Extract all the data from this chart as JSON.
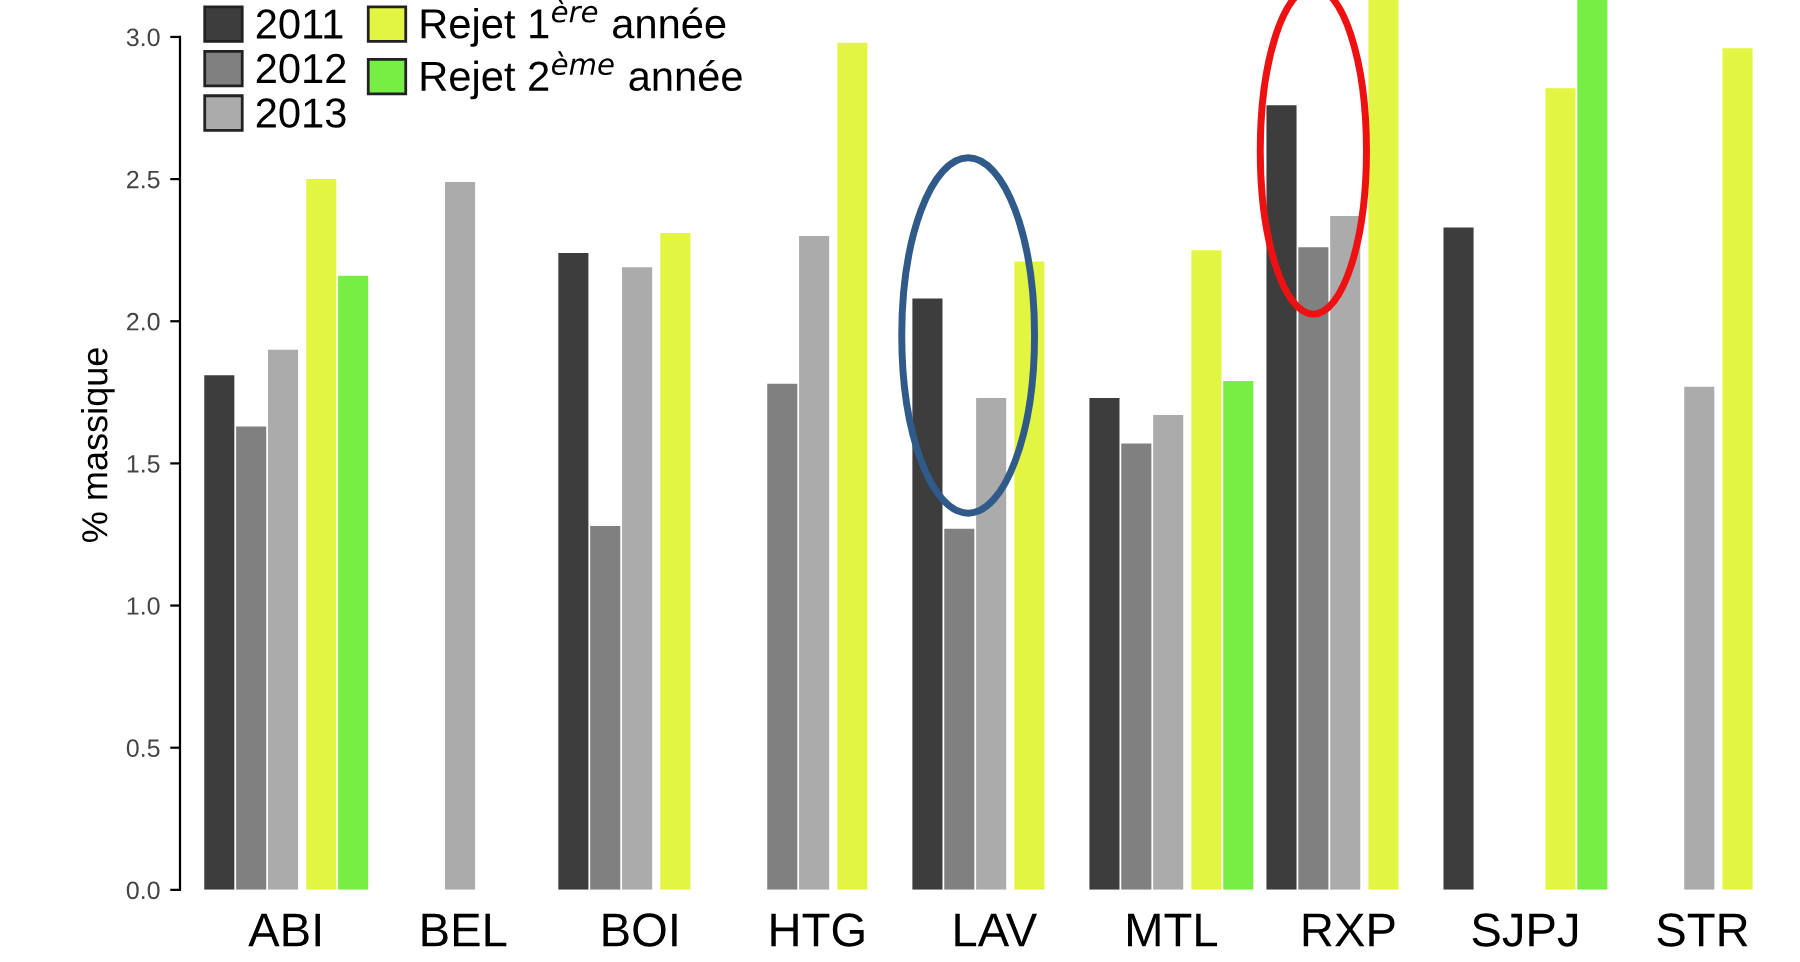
{
  "chart_data": {
    "type": "bar",
    "ylabel": "% massique",
    "categories": [
      "ABI",
      "BEL",
      "BOI",
      "HTG",
      "LAV",
      "MTL",
      "RXP",
      "SJPJ",
      "STR"
    ],
    "series": [
      {
        "name": "2011",
        "color": "#3d3d3d",
        "values": [
          1.81,
          null,
          2.24,
          null,
          2.08,
          1.73,
          2.76,
          2.33,
          null
        ]
      },
      {
        "name": "2012",
        "color": "#808080",
        "values": [
          1.63,
          null,
          1.28,
          1.78,
          1.27,
          1.57,
          2.26,
          null,
          null
        ]
      },
      {
        "name": "2013",
        "color": "#ababab",
        "values": [
          1.9,
          2.49,
          2.19,
          2.3,
          1.73,
          1.67,
          2.37,
          null,
          1.77
        ]
      },
      {
        "name": "Rejet 1$^{ère}$ année",
        "color": "#e2f542",
        "values": [
          2.5,
          null,
          2.31,
          2.98,
          2.21,
          2.25,
          3.13,
          2.82,
          2.96
        ]
      },
      {
        "name": "Rejet 2$^{ème}$ année",
        "color": "#77ee44",
        "values": [
          2.16,
          null,
          null,
          null,
          null,
          1.79,
          null,
          3.13,
          null
        ]
      }
    ],
    "ylim": [
      0,
      3.13
    ],
    "yticks": [
      {
        "value": 0,
        "label": "0.0"
      },
      {
        "value": 0.5,
        "label": "0.5"
      },
      {
        "value": 1,
        "label": "1.0"
      },
      {
        "value": 1.5,
        "label": "1.5"
      },
      {
        "value": 2,
        "label": "2.0"
      },
      {
        "value": 2.5,
        "label": "2.5"
      },
      {
        "value": 3,
        "label": "3.0"
      }
    ],
    "legend": "top left",
    "grid": false
  }
}
